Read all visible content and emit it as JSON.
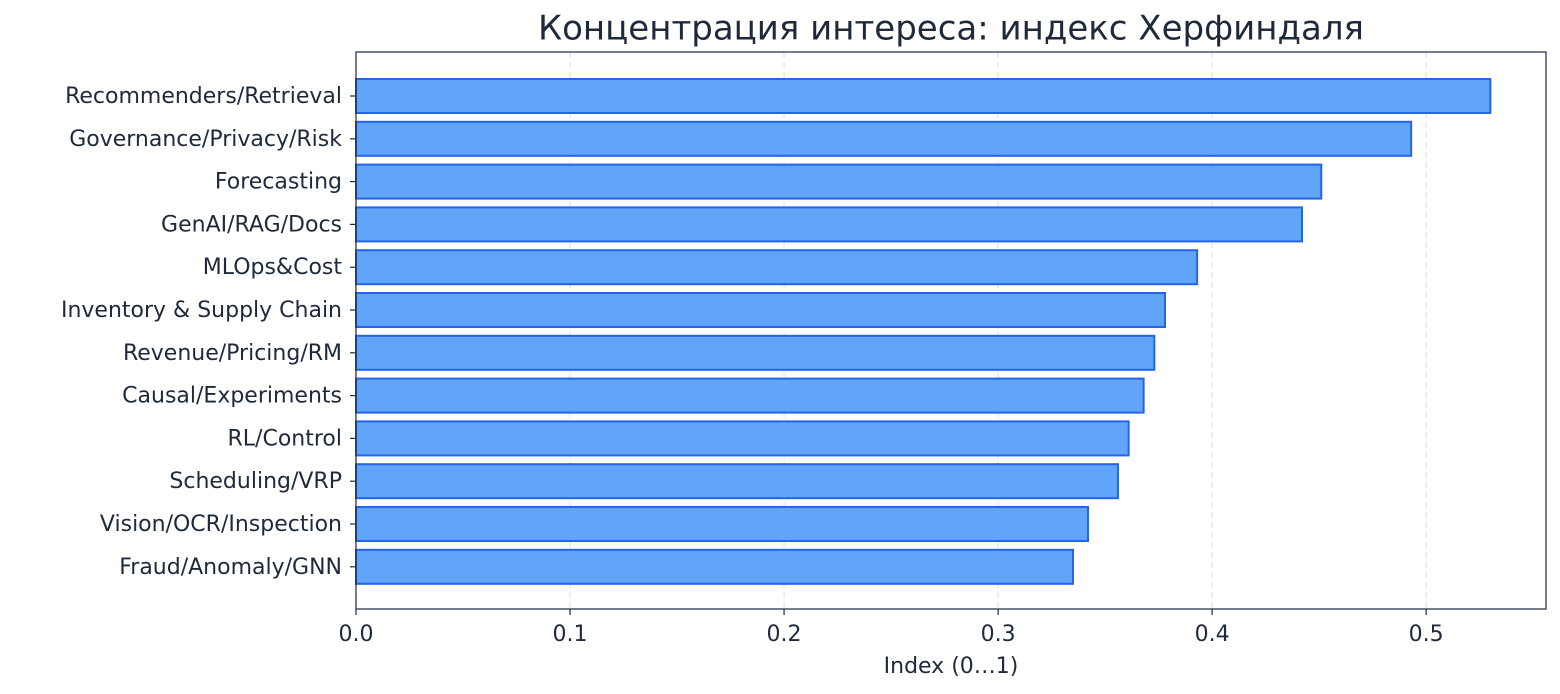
{
  "chart_data": {
    "type": "barh",
    "title": "Концентрация интереса: индекс Херфиндаля",
    "xlabel": "Index (0…1)",
    "categories": [
      "Recommenders/Retrieval",
      "Governance/Privacy/Risk",
      "Forecasting",
      "GenAI/RAG/Docs",
      "MLOps&Cost",
      "Inventory & Supply Chain",
      "Revenue/Pricing/RM",
      "Causal/Experiments",
      "RL/Control",
      "Scheduling/VRP",
      "Vision/OCR/Inspection",
      "Fraud/Anomaly/GNN"
    ],
    "values": [
      0.53,
      0.493,
      0.451,
      0.442,
      0.393,
      0.378,
      0.373,
      0.368,
      0.361,
      0.356,
      0.342,
      0.335
    ],
    "color": "#60a5fa",
    "edgecolor": "#2563eb",
    "xlim": [
      0,
      0.556
    ],
    "xticks": [
      {
        "value": 0,
        "label": "0.0"
      },
      0.1,
      0.2,
      0.3,
      0.4,
      0.5
    ],
    "grid": true
  }
}
